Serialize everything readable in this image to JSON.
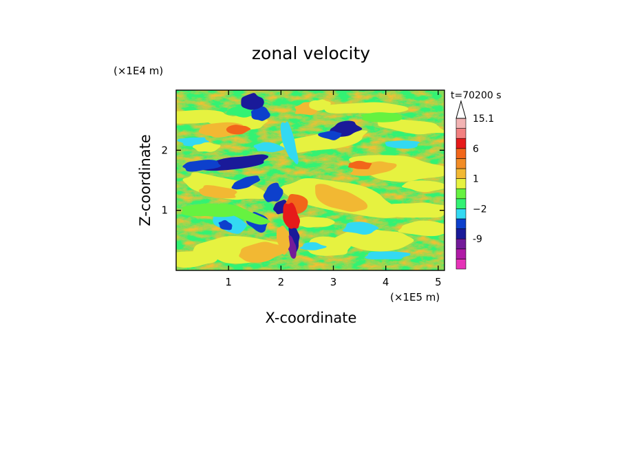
{
  "chart_data": {
    "type": "heatmap",
    "title": "zonal velocity",
    "xlabel": "X-coordinate",
    "ylabel": "Z-coordinate",
    "x_unit": "(×1E5 m)",
    "y_unit": "(×1E4 m)",
    "time_label": "t=70200 s",
    "xlim": [
      0,
      5.12
    ],
    "ylim": [
      0,
      3.0
    ],
    "x_ticks": [
      {
        "value": 1,
        "label": "1"
      },
      {
        "value": 2,
        "label": "2"
      },
      {
        "value": 3,
        "label": "3"
      },
      {
        "value": 4,
        "label": "4"
      },
      {
        "value": 5,
        "label": "5"
      }
    ],
    "y_ticks": [
      {
        "value": 1,
        "label": "1"
      },
      {
        "value": 2,
        "label": "2"
      }
    ],
    "colorbar": {
      "bins": [
        {
          "color": "#e633b8"
        },
        {
          "color": "#b01aa6"
        },
        {
          "color": "#731a99"
        },
        {
          "color": "#1a1a99"
        },
        {
          "color": "#0d40cc"
        },
        {
          "color": "#33d9f2"
        },
        {
          "color": "#33f273"
        },
        {
          "color": "#66f240"
        },
        {
          "color": "#e6f240"
        },
        {
          "color": "#f2b833"
        },
        {
          "color": "#f28c26"
        },
        {
          "color": "#f2661a"
        },
        {
          "color": "#e61a1a"
        },
        {
          "color": "#f28080"
        },
        {
          "color": "#f2b3b3"
        }
      ],
      "labels": [
        {
          "value": "-9",
          "bin": 2
        },
        {
          "value": "−2",
          "bin": 5
        },
        {
          "value": "1",
          "bin": 8
        },
        {
          "value": "6",
          "bin": 11
        },
        {
          "value": "15.1",
          "bin": 14
        }
      ],
      "extend": "max"
    }
  }
}
